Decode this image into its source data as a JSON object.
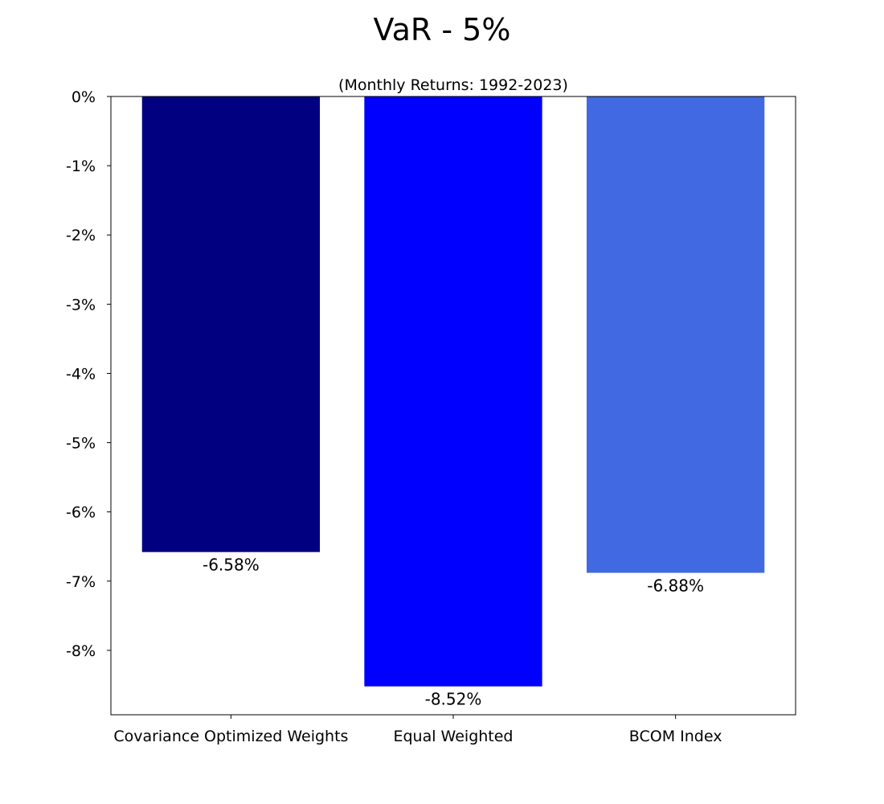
{
  "chart_data": {
    "type": "bar",
    "title": "VaR - 5%",
    "subtitle": "(Monthly Returns: 1992-2023)",
    "xlabel": "",
    "ylabel": "",
    "categories": [
      "Covariance Optimized Weights",
      "Equal Weighted",
      "BCOM Index"
    ],
    "values": [
      -6.58,
      -8.52,
      -6.88
    ],
    "value_labels": [
      "-6.58%",
      "-8.52%",
      "-6.88%"
    ],
    "bar_colors": [
      "#000080",
      "#0000ff",
      "#4169e1"
    ],
    "ylim": [
      -8.93,
      0
    ],
    "yticks": [
      0,
      -1,
      -2,
      -3,
      -4,
      -5,
      -6,
      -7,
      -8
    ],
    "ytick_labels": [
      "0%",
      "-1%",
      "-2%",
      "-3%",
      "-4%",
      "-5%",
      "-6%",
      "-7%",
      "-8%"
    ],
    "grid": false,
    "legend": "none"
  }
}
